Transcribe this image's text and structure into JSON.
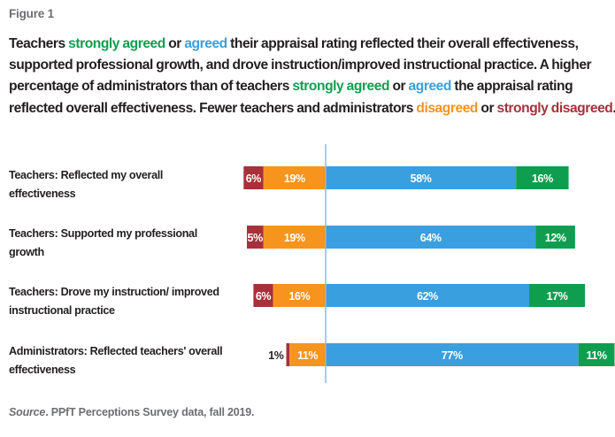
{
  "figure_label": "Figure 1",
  "title_segments": [
    {
      "text": "Teachers ",
      "class": ""
    },
    {
      "text": "strongly agreed",
      "class": "c-sa"
    },
    {
      "text": " or ",
      "class": ""
    },
    {
      "text": "agreed",
      "class": "c-a"
    },
    {
      "text": " their appraisal rating reflected their overall effectiveness, supported professional growth, and drove instruction/improved instructional practice. A higher percentage of administrators than of teachers ",
      "class": ""
    },
    {
      "text": "strongly agreed",
      "class": "c-sa"
    },
    {
      "text": " or ",
      "class": ""
    },
    {
      "text": "agreed",
      "class": "c-a"
    },
    {
      "text": " the appraisal rating reflected overall effectiveness. Fewer teachers and administrators ",
      "class": ""
    },
    {
      "text": "disagreed",
      "class": "c-d"
    },
    {
      "text": " or ",
      "class": ""
    },
    {
      "text": "strongly disagreed",
      "class": "c-sd"
    },
    {
      "text": ".",
      "class": ""
    }
  ],
  "source": {
    "label": "Source",
    "text": ". PPfT Perceptions Survey data, fall 2019."
  },
  "colors": {
    "strongly_disagree": "#a6313a",
    "disagree": "#f7941d",
    "agree": "#3a9fde",
    "strongly_agree": "#0f9e4f",
    "divider": "#8fb8e0"
  },
  "chart_data": {
    "type": "bar",
    "orientation": "horizontal",
    "stacked": "diverging",
    "title": "Teachers strongly agreed or agreed their appraisal rating reflected their overall effectiveness, supported professional growth, and drove instruction/improved instructional practice.",
    "categories": [
      "Teachers: Reflected my overall effectiveness",
      "Teachers: Supported my professional growth",
      "Teachers: Drove my instruction/ improved instructional practice",
      "Administrators: Reflected teachers' overall effectiveness"
    ],
    "series": [
      {
        "name": "strongly disagreed",
        "side": "negative",
        "values": [
          6,
          5,
          6,
          1
        ],
        "labels": [
          "6%",
          "5%",
          "6%",
          "1%"
        ]
      },
      {
        "name": "disagreed",
        "side": "negative",
        "values": [
          19,
          19,
          16,
          11
        ],
        "labels": [
          "19%",
          "19%",
          "16%",
          "11%"
        ]
      },
      {
        "name": "agreed",
        "side": "positive",
        "values": [
          58,
          64,
          62,
          77
        ],
        "labels": [
          "58%",
          "64%",
          "62%",
          "77%"
        ]
      },
      {
        "name": "strongly agreed",
        "side": "positive",
        "values": [
          16,
          12,
          17,
          11
        ],
        "labels": [
          "16%",
          "12%",
          "17%",
          "11%"
        ]
      }
    ],
    "xlabel": "",
    "ylabel": "",
    "grid": false,
    "legend": "none (colors keyed in title)"
  }
}
